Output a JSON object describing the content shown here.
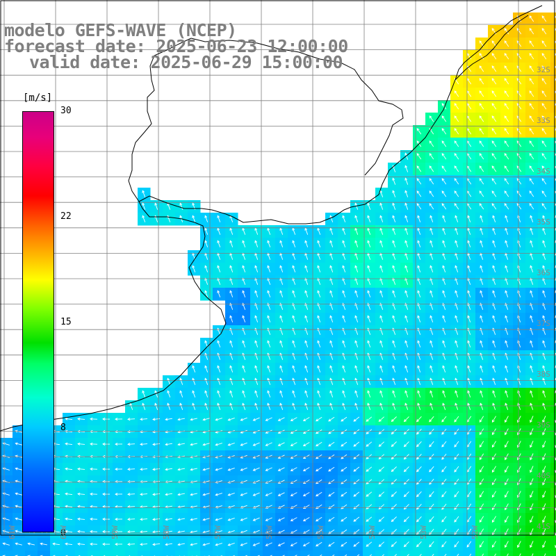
{
  "title": {
    "model": "modelo GEFS-WAVE (NCEP)",
    "forecast": "forecast date: 2025-06-23 12:00:00",
    "valid": "valid date: 2025-06-29 15:00:00"
  },
  "colorbar": {
    "unit": "[m/s]",
    "min": 0,
    "max": 30,
    "ticks": [
      "30",
      "22",
      "15",
      "8",
      "0"
    ]
  },
  "lat_labels": [
    "32S",
    "33S",
    "34S",
    "35S",
    "36S",
    "37S",
    "38S",
    "39S",
    "40S",
    "41S"
  ],
  "lon_labels": [
    "61W",
    "60W",
    "59W",
    "58W",
    "57W",
    "56W",
    "55W",
    "54W",
    "53W",
    "52W"
  ],
  "colors": {
    "title": "#7f7f7f",
    "land": "#ffffff",
    "grid": "#7f7f7f",
    "coast": "#000000",
    "arrows": "#ffffff"
  }
}
